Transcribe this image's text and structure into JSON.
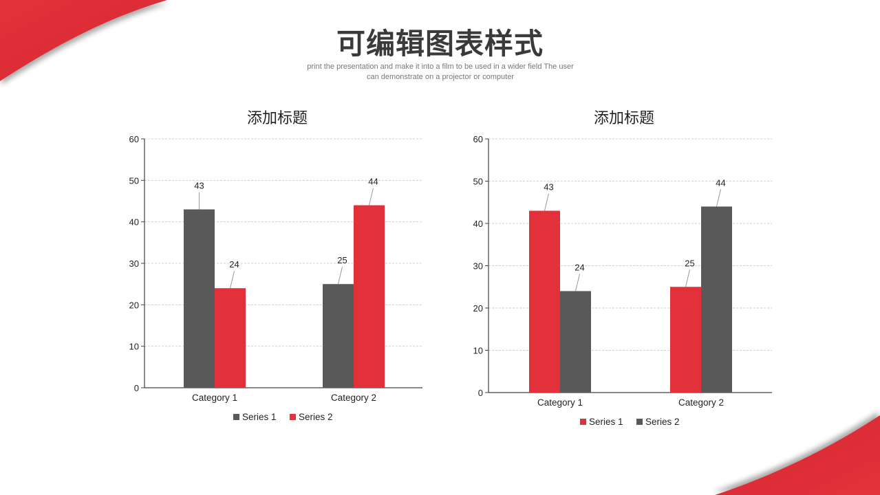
{
  "page": {
    "title": "可编辑图表样式",
    "subtitle_line1": "print the presentation and make it into a film to be used in a wider field The user",
    "subtitle_line2": "can demonstrate on a projector or computer"
  },
  "colors": {
    "accent_red": "#E2313A",
    "dark_gray": "#595959",
    "grid": "#d0d0d0",
    "axis": "#404040"
  },
  "charts": [
    {
      "title": "添加标题",
      "legend": [
        {
          "label": "Series 1",
          "color": "#595959"
        },
        {
          "label": "Series 2",
          "color": "#E2313A"
        }
      ]
    },
    {
      "title": "添加标题",
      "legend": [
        {
          "label": "Series 1",
          "color": "#E2313A"
        },
        {
          "label": "Series 2",
          "color": "#595959"
        }
      ]
    }
  ],
  "chart_data": [
    {
      "type": "bar",
      "title": "添加标题",
      "categories": [
        "Category 1",
        "Category 2"
      ],
      "series": [
        {
          "name": "Series 1",
          "color": "#595959",
          "values": [
            43,
            25
          ]
        },
        {
          "name": "Series 2",
          "color": "#E2313A",
          "values": [
            24,
            44
          ]
        }
      ],
      "xlabel": "",
      "ylabel": "",
      "ylim": [
        0,
        60
      ],
      "yticks": [
        0,
        10,
        20,
        30,
        40,
        50,
        60
      ],
      "grid": true,
      "data_labels": true,
      "legend_position": "bottom"
    },
    {
      "type": "bar",
      "title": "添加标题",
      "categories": [
        "Category 1",
        "Category 2"
      ],
      "series": [
        {
          "name": "Series 1",
          "color": "#E2313A",
          "values": [
            43,
            25
          ]
        },
        {
          "name": "Series 2",
          "color": "#595959",
          "values": [
            24,
            44
          ]
        }
      ],
      "xlabel": "",
      "ylabel": "",
      "ylim": [
        0,
        60
      ],
      "yticks": [
        0,
        10,
        20,
        30,
        40,
        50,
        60
      ],
      "grid": true,
      "data_labels": true,
      "legend_position": "bottom"
    }
  ]
}
